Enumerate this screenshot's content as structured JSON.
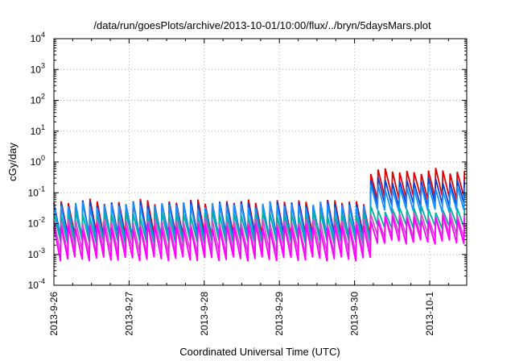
{
  "chart_data": {
    "type": "line",
    "title": "/data/run/goesPlots/archive/2013-10-01/10:00/flux/../bryn/5daysMars.plot",
    "xlabel": "Coordinated Universal Time (UTC)",
    "ylabel": "cGy/day",
    "yscale": "log",
    "ylim": [
      0.0001,
      10000
    ],
    "xlim": [
      "2013-09-26 00:00",
      "2013-10-01 12:00"
    ],
    "x_ticks": [
      "2013-9-26",
      "2013-9-27",
      "2013-9-28",
      "2013-9-29",
      "2013-9-30",
      "2013-10-1"
    ],
    "y_ticks": [
      {
        "base": "10",
        "exp": "-4"
      },
      {
        "base": "10",
        "exp": "-3"
      },
      {
        "base": "10",
        "exp": "-2"
      },
      {
        "base": "10",
        "exp": "-1"
      },
      {
        "base": "10",
        "exp": "0"
      },
      {
        "base": "10",
        "exp": "1"
      },
      {
        "base": "10",
        "exp": "2"
      },
      {
        "base": "10",
        "exp": "3"
      },
      {
        "base": "10",
        "exp": "4"
      }
    ],
    "grid": true,
    "sawtooth_period_hours": 2.3,
    "jump_time": "2013-09-30 04:00",
    "series": [
      {
        "color": "#e00000",
        "peak_before": 0.05,
        "trough_before": 0.004,
        "peak_after": 0.5,
        "trough_after": 0.07
      },
      {
        "color": "#1040d0",
        "peak_before": 0.045,
        "trough_before": 0.0035,
        "peak_after": 0.25,
        "trough_after": 0.04
      },
      {
        "color": "#1890ff",
        "peak_before": 0.04,
        "trough_before": 0.003,
        "peak_after": 0.15,
        "trough_after": 0.025
      },
      {
        "color": "#00b0a0",
        "peak_before": 0.02,
        "trough_before": 0.0025,
        "peak_after": 0.03,
        "trough_after": 0.008
      },
      {
        "color": "#d050d0",
        "peak_before": 0.012,
        "trough_before": 0.0012,
        "peak_after": 0.02,
        "trough_after": 0.004
      },
      {
        "color": "#ff00ff",
        "peak_before": 0.008,
        "trough_before": 0.0007,
        "peak_after": 0.015,
        "trough_after": 0.0025
      }
    ]
  }
}
